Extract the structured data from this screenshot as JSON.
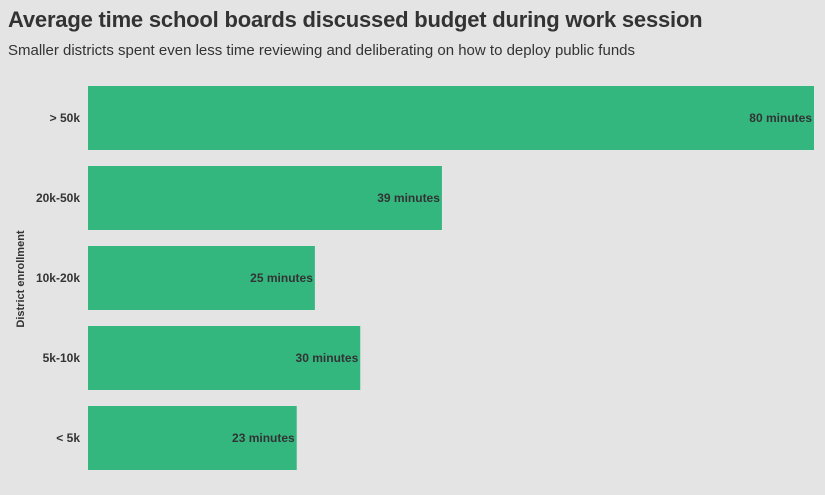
{
  "header": {
    "title": "Average time school boards discussed budget during work session",
    "subtitle": "Smaller districts spent even less time reviewing and deliberating on how to deploy public funds"
  },
  "chart_data": {
    "type": "bar",
    "orientation": "horizontal",
    "title": "Average time school boards discussed budget during work session",
    "subtitle": "Smaller districts spent even less time reviewing and deliberating on how to deploy public funds",
    "ylabel": "District enrollment",
    "xlabel": "",
    "categories": [
      "> 50k",
      "20k-50k",
      "10k-20k",
      "5k-10k",
      "< 5k"
    ],
    "values": [
      80,
      39,
      25,
      30,
      23
    ],
    "data_labels": [
      "80 minutes",
      "39 minutes",
      "25 minutes",
      "30 minutes",
      "23 minutes"
    ],
    "xlim": [
      0,
      80
    ],
    "grid": false,
    "bar_color": "#33b77f",
    "background": "#e4e4e4"
  }
}
